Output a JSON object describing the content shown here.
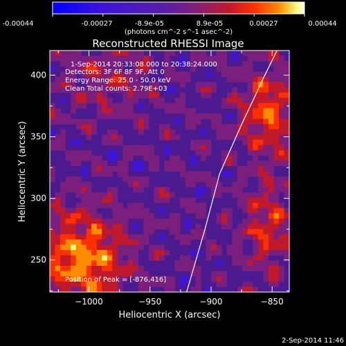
{
  "chart_data": {
    "type": "heatmap",
    "title": "Reconstructed RHESSI Image",
    "info": [
      "1-Sep-2014 20:33:08.000 to 20:38:24.000",
      "Detectors: 3F 6F 8F 9F, Att 0",
      "Energy Range: 25.0 - 50.0 keV",
      "Clean    Total counts: 2.79E+03"
    ],
    "peak_label": "Position of Peak = [-876,416]",
    "xlabel": "Heliocentric X (arcsec)",
    "ylabel": "Heliocentric Y (arcsec)",
    "xlim": [
      -1032,
      -836
    ],
    "ylim": [
      224,
      420
    ],
    "xticks": [
      -1000,
      -950,
      -900,
      -850
    ],
    "yticks": [
      250,
      300,
      350,
      400
    ],
    "colorbar": {
      "range": [
        -0.00044,
        0.00044
      ],
      "ticks": [
        "-0.00044",
        "-0.00027",
        "-8.9e-05",
        "8.9e-05",
        "0.00027",
        "0.00044"
      ],
      "unit_label": "(photons cm^-2 s^-1 asec^-2)"
    },
    "limb_curve": [
      [
        -920,
        224
      ],
      [
        -905,
        275
      ],
      [
        -893,
        320
      ],
      [
        -875,
        360
      ],
      [
        -856,
        400
      ],
      [
        -846,
        420
      ]
    ]
  },
  "footer": {
    "timestamp": "2-Sep-2014 11:46"
  },
  "colors": {
    "background": "#000000",
    "text": "#ffffff",
    "colormap": [
      "#0000ff",
      "#3d14d8",
      "#5a1ea6",
      "#7a1f7e",
      "#c0192c",
      "#ff3000",
      "#ff8c00",
      "#ffff7f",
      "#ffffff"
    ]
  }
}
